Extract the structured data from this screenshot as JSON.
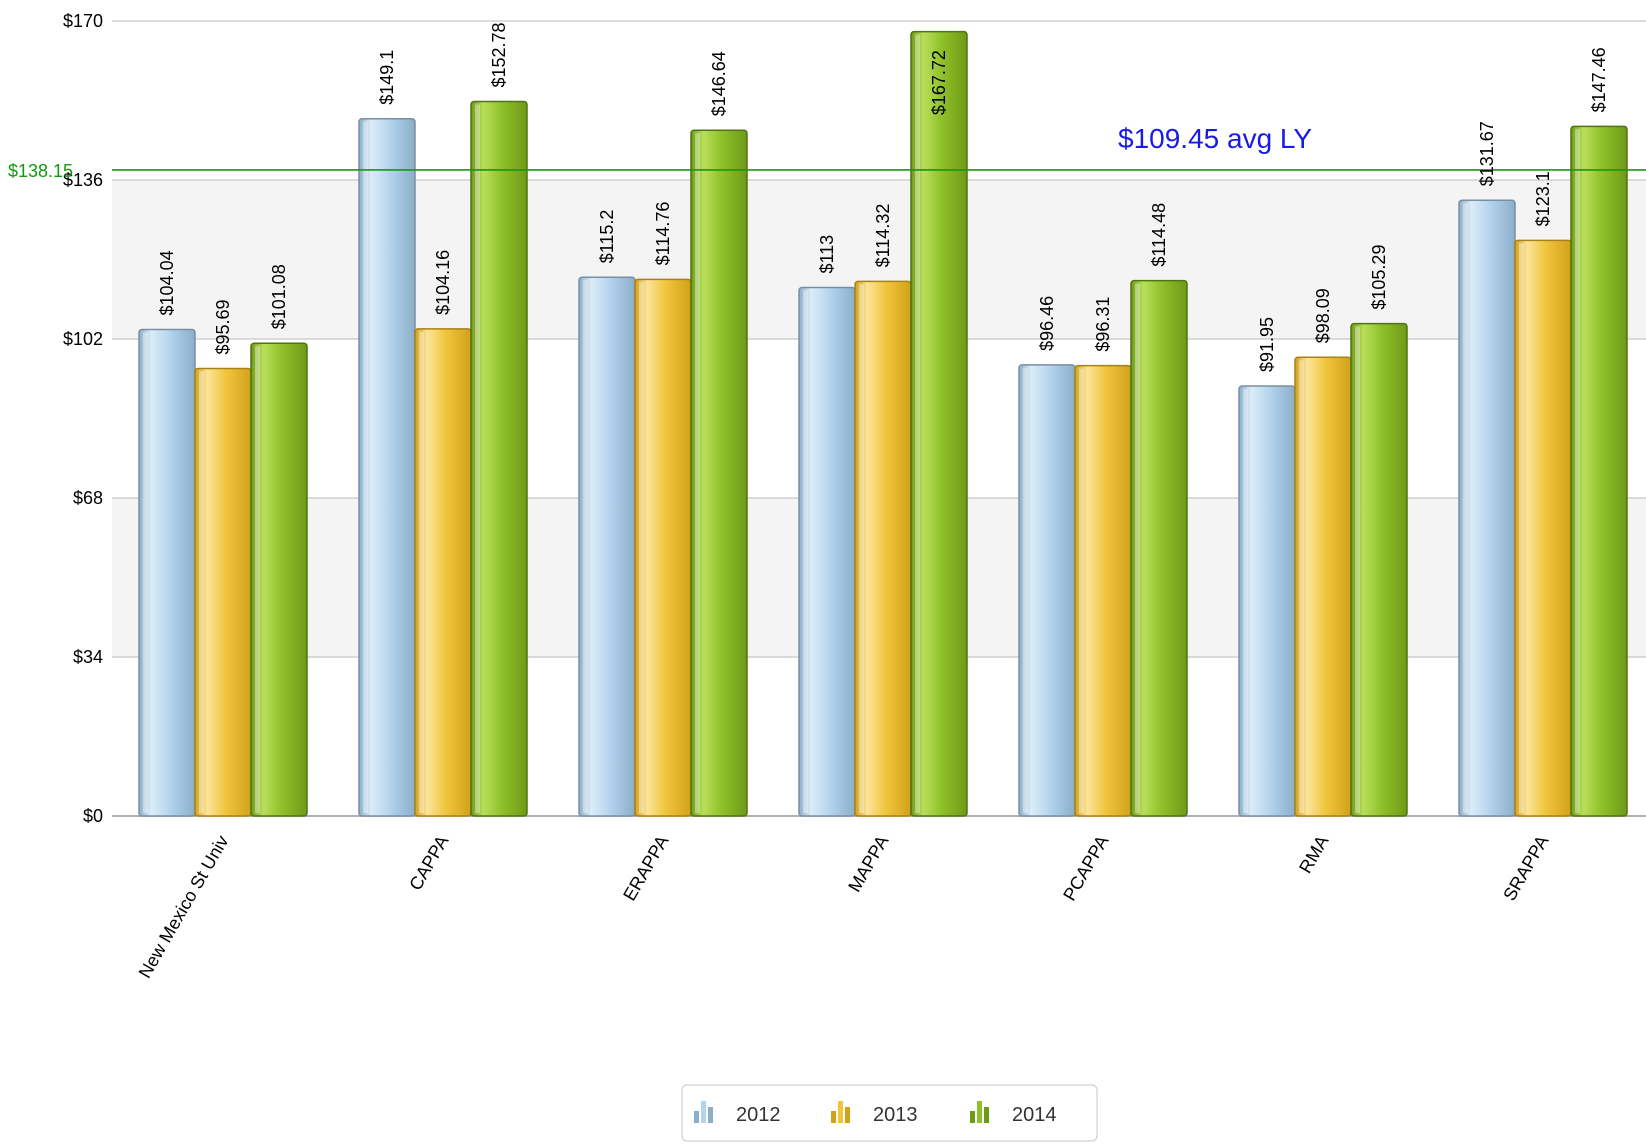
{
  "chart_data": {
    "type": "bar",
    "categories": [
      "New Mexico St Univ",
      "CAPPA",
      "ERAPPA",
      "MAPPA",
      "PCAPPA",
      "RMA",
      "SRAPPA"
    ],
    "series": [
      {
        "name": "2012",
        "values": [
          104.04,
          149.1,
          115.2,
          113,
          96.46,
          91.95,
          131.67
        ],
        "labels": [
          "$104.04",
          "$149.1",
          "$115.2",
          "$113",
          "$96.46",
          "$91.95",
          "$131.67"
        ]
      },
      {
        "name": "2013",
        "values": [
          95.69,
          104.16,
          114.76,
          114.32,
          96.31,
          98.09,
          123.1
        ],
        "labels": [
          "$95.69",
          "$104.16",
          "$114.76",
          "$114.32",
          "$96.31",
          "$98.09",
          "$123.1"
        ]
      },
      {
        "name": "2014",
        "values": [
          101.08,
          152.78,
          146.64,
          167.72,
          114.48,
          105.29,
          147.46
        ],
        "labels": [
          "$101.08",
          "$152.78",
          "$146.64",
          "$167.72",
          "$114.48",
          "$105.29",
          "$147.46"
        ]
      }
    ],
    "yticks": [
      0,
      34,
      68,
      102,
      136,
      170
    ],
    "ytick_labels": [
      "$0",
      "$34",
      "$68",
      "$102",
      "$136",
      "$170"
    ],
    "ylim": [
      0,
      170
    ],
    "grid": true,
    "reference_line": {
      "value": 138.15,
      "label": "$138.15",
      "color": "#129a12"
    },
    "annotation": {
      "text": "$109.45 avg LY",
      "color": "#1a1ae6"
    },
    "legend": {
      "position": "bottom-center",
      "items": [
        "2012",
        "2013",
        "2014"
      ]
    },
    "colors": {
      "2012": {
        "light": "#dcecf8",
        "mid": "#b4d4ee",
        "dark": "#8aaec9",
        "stroke": "#7a8fa3"
      },
      "2013": {
        "light": "#fbe49a",
        "mid": "#f0c53c",
        "dark": "#d2a11a",
        "stroke": "#a88217"
      },
      "2014": {
        "light": "#b9df5a",
        "mid": "#8fc12a",
        "dark": "#6e9a16",
        "stroke": "#4f7410"
      }
    }
  }
}
